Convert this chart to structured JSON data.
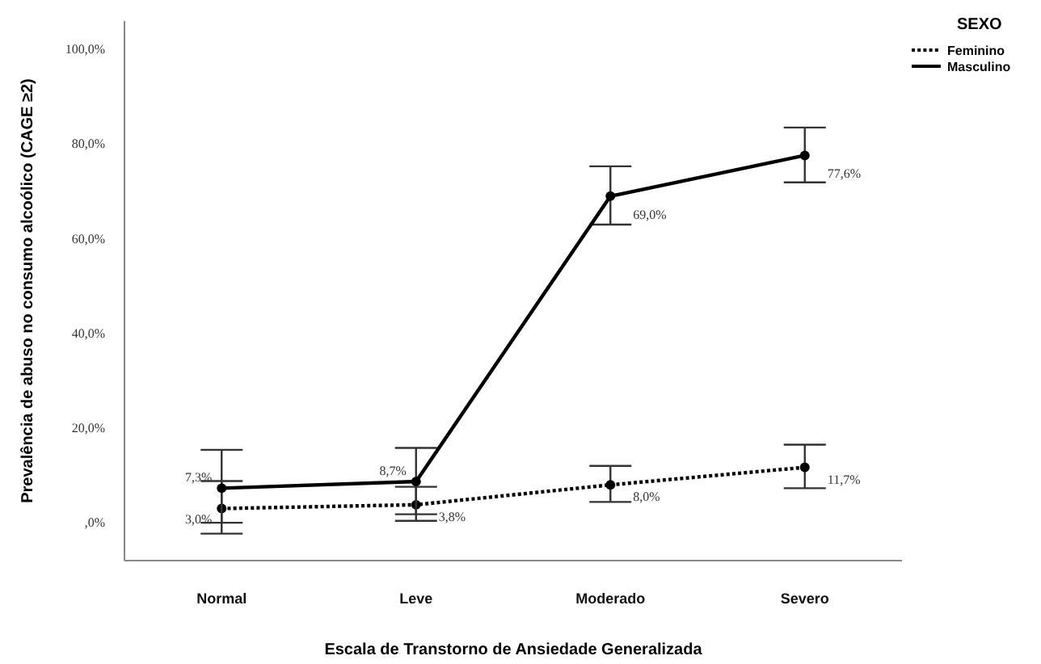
{
  "chart_data": {
    "type": "line",
    "xlabel": "Escala de Transtorno de Ansiedade Generalizada",
    "ylabel": "Prevalência de abuso no consumo alcoólico (CAGE ≥2)",
    "legend_title": "SEXO",
    "legend": "top right",
    "marker": "circle",
    "categories": [
      "Normal",
      "Leve",
      "Moderado",
      "Severo"
    ],
    "ylim": [
      -8,
      106
    ],
    "yticks": [
      {
        "value": 0,
        "label": ",0%"
      },
      {
        "value": 20,
        "label": "20,0%"
      },
      {
        "value": 40,
        "label": "40,0%"
      },
      {
        "value": 60,
        "label": "60,0%"
      },
      {
        "value": 80,
        "label": "80,0%"
      },
      {
        "value": 100,
        "label": "100,0%"
      }
    ],
    "grid": false,
    "series": [
      {
        "name": "Feminino",
        "color": "#000000",
        "line_style": "dotted",
        "values": [
          3.0,
          3.8,
          8.0,
          11.7
        ],
        "value_labels": [
          "3,0%",
          "3,8%",
          "8,0%",
          "11,7%"
        ],
        "errors": [
          [
            -2.3,
            8.8
          ],
          [
            0.4,
            7.6
          ],
          [
            4.4,
            12.0
          ],
          [
            7.3,
            16.5
          ]
        ]
      },
      {
        "name": "Masculino",
        "color": "#000000",
        "line_style": "solid",
        "values": [
          7.3,
          8.7,
          69.0,
          77.6
        ],
        "value_labels": [
          "7,3%",
          "8,7%",
          "69,0%",
          "77,6%"
        ],
        "errors": [
          [
            0,
            15.4
          ],
          [
            1.8,
            15.8
          ],
          [
            63.0,
            75.3
          ],
          [
            71.9,
            83.5
          ]
        ]
      }
    ]
  }
}
